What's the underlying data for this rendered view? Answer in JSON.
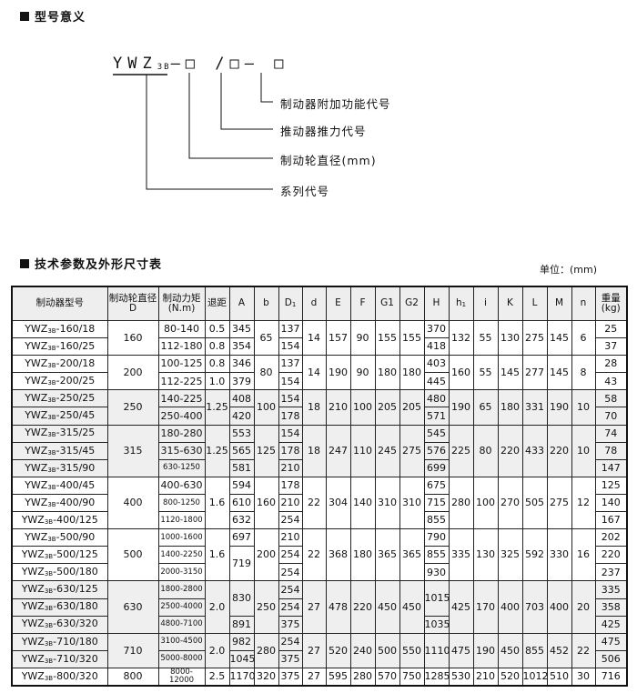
{
  "section1": {
    "title": "型号意义"
  },
  "formula": {
    "prefix": "YWZ",
    "sub": "3B",
    "rest": "—□ /□— □"
  },
  "legend": [
    "制动器附加功能代号",
    "推动器推力代号",
    "制动轮直径(mm)",
    "系列代号"
  ],
  "section2": {
    "title": "技术参数及外形尺寸表",
    "unit": "单位：(mm)"
  },
  "table": {
    "headers": [
      {
        "main": "制动器型号"
      },
      {
        "main": "制动轮直径",
        "second": "D"
      },
      {
        "main": "制动力矩",
        "second": "(N.m)"
      },
      {
        "main": "退距"
      },
      {
        "main": "A"
      },
      {
        "main": "b"
      },
      {
        "main": "D",
        "sub": "1"
      },
      {
        "main": "d"
      },
      {
        "main": "E"
      },
      {
        "main": "F"
      },
      {
        "main": "G1"
      },
      {
        "main": "G2"
      },
      {
        "main": "H"
      },
      {
        "main": "h",
        "sub": "1"
      },
      {
        "main": "i"
      },
      {
        "main": "K"
      },
      {
        "main": "L"
      },
      {
        "main": "M"
      },
      {
        "main": "n"
      },
      {
        "main": "重量",
        "second": "(kg)"
      }
    ],
    "model_prefix": "YWZ",
    "model_sub": "3B",
    "rows": [
      {
        "shade": false,
        "c": [
          "-160/18",
          "160",
          "80-140",
          "0.5",
          "345",
          "65",
          "137",
          "14",
          "157",
          "90",
          "155",
          "155",
          "370",
          "132",
          "55",
          "130",
          "275",
          "145",
          "6",
          "25"
        ]
      },
      {
        "shade": false,
        "c": [
          "-160/25",
          null,
          "112-180",
          "0.8",
          "354",
          null,
          "154",
          null,
          null,
          null,
          null,
          null,
          "418",
          null,
          null,
          null,
          null,
          null,
          null,
          "37"
        ]
      },
      {
        "shade": false,
        "c": [
          "-200/18",
          "200",
          "100-125",
          "0.8",
          "346",
          "80",
          "137",
          "14",
          "190",
          "90",
          "180",
          "180",
          "403",
          "160",
          "55",
          "145",
          "277",
          "145",
          "8",
          "28"
        ]
      },
      {
        "shade": false,
        "c": [
          "-200/25",
          null,
          "112-225",
          "1.0",
          "379",
          null,
          "154",
          null,
          null,
          null,
          null,
          null,
          "445",
          null,
          null,
          null,
          null,
          null,
          null,
          "43"
        ]
      },
      {
        "shade": true,
        "c": [
          "-250/25",
          "250",
          "140-225",
          "1.25",
          "408",
          "100",
          "154",
          "18",
          "210",
          "100",
          "205",
          "205",
          "480",
          "190",
          "65",
          "180",
          "331",
          "190",
          "10",
          "58"
        ]
      },
      {
        "shade": true,
        "c": [
          "-250/45",
          null,
          "250-400",
          null,
          "420",
          null,
          "178",
          null,
          null,
          null,
          null,
          null,
          "571",
          null,
          null,
          null,
          null,
          null,
          null,
          "70"
        ]
      },
      {
        "shade": true,
        "c": [
          "-315/25",
          "315",
          "180-280",
          "1.25",
          "553",
          "125",
          "154",
          "18",
          "247",
          "110",
          "245",
          "275",
          "545",
          "225",
          "80",
          "220",
          "433",
          "220",
          "10",
          "74"
        ]
      },
      {
        "shade": true,
        "c": [
          "-315/45",
          null,
          "315-630",
          null,
          "565",
          null,
          "178",
          null,
          null,
          null,
          null,
          null,
          "576",
          null,
          null,
          null,
          null,
          null,
          null,
          "78"
        ]
      },
      {
        "shade": true,
        "c": [
          "-315/90",
          null,
          "630-1250",
          null,
          "581",
          null,
          "210",
          null,
          null,
          null,
          null,
          null,
          "699",
          null,
          null,
          null,
          null,
          null,
          null,
          "147"
        ]
      },
      {
        "shade": false,
        "c": [
          "-400/45",
          "400",
          "400-630",
          "1.6",
          "594",
          "160",
          "178",
          "22",
          "304",
          "140",
          "310",
          "310",
          "675",
          "280",
          "100",
          "270",
          "505",
          "275",
          "12",
          "125"
        ]
      },
      {
        "shade": false,
        "c": [
          "-400/90",
          null,
          "800-1250",
          null,
          "610",
          null,
          "210",
          null,
          null,
          null,
          null,
          null,
          "715",
          null,
          null,
          null,
          null,
          null,
          null,
          "140"
        ]
      },
      {
        "shade": false,
        "c": [
          "-400/125",
          null,
          "1120-1800",
          null,
          "632",
          null,
          "254",
          null,
          null,
          null,
          null,
          null,
          "855",
          null,
          null,
          null,
          null,
          null,
          null,
          "167"
        ]
      },
      {
        "shade": false,
        "c": [
          "-500/90",
          "500",
          "1000-1600",
          "1.6",
          "697",
          "200",
          "210",
          "22",
          "368",
          "180",
          "365",
          "365",
          "790",
          "335",
          "130",
          "325",
          "592",
          "330",
          "16",
          "202"
        ]
      },
      {
        "shade": false,
        "c": [
          "-500/125",
          null,
          "1400-2250",
          null,
          "719",
          null,
          "254",
          null,
          null,
          null,
          null,
          null,
          "855",
          null,
          null,
          null,
          null,
          null,
          null,
          "220"
        ]
      },
      {
        "shade": false,
        "c": [
          "-500/180",
          null,
          "2000-3150",
          null,
          null,
          null,
          "254",
          null,
          null,
          null,
          null,
          null,
          "930",
          null,
          null,
          null,
          null,
          null,
          null,
          "237"
        ]
      },
      {
        "shade": true,
        "c": [
          "-630/125",
          "630",
          "1800-2800",
          "2.0",
          "830",
          "250",
          "254",
          "27",
          "478",
          "220",
          "450",
          "450",
          "1015",
          "425",
          "170",
          "400",
          "703",
          "400",
          "20",
          "335"
        ]
      },
      {
        "shade": true,
        "c": [
          "-630/180",
          null,
          "2500-4000",
          null,
          null,
          null,
          "254",
          null,
          null,
          null,
          null,
          null,
          null,
          null,
          null,
          null,
          null,
          null,
          null,
          "358"
        ]
      },
      {
        "shade": true,
        "c": [
          "-630/320",
          null,
          "4800-7100",
          null,
          "891",
          null,
          "375",
          null,
          null,
          null,
          null,
          null,
          "1035",
          null,
          null,
          null,
          null,
          null,
          null,
          "425"
        ]
      },
      {
        "shade": true,
        "c": [
          "-710/180",
          "710",
          "3100-4500",
          "2.0",
          "982",
          "280",
          "254",
          "27",
          "520",
          "240",
          "500",
          "550",
          "1110",
          "475",
          "190",
          "450",
          "855",
          "452",
          "22",
          "475"
        ]
      },
      {
        "shade": true,
        "c": [
          "-710/320",
          null,
          "5000-8000",
          null,
          "1045",
          null,
          "375",
          null,
          null,
          null,
          null,
          null,
          null,
          null,
          null,
          null,
          null,
          null,
          null,
          "506"
        ]
      },
      {
        "shade": false,
        "c": [
          "-800/320",
          "800",
          "8000-12000",
          "2.5",
          "1170",
          "320",
          "375",
          "27",
          "595",
          "280",
          "570",
          "750",
          "1285",
          "530",
          "210",
          "520",
          "1012",
          "510",
          "30",
          "716"
        ]
      }
    ]
  }
}
